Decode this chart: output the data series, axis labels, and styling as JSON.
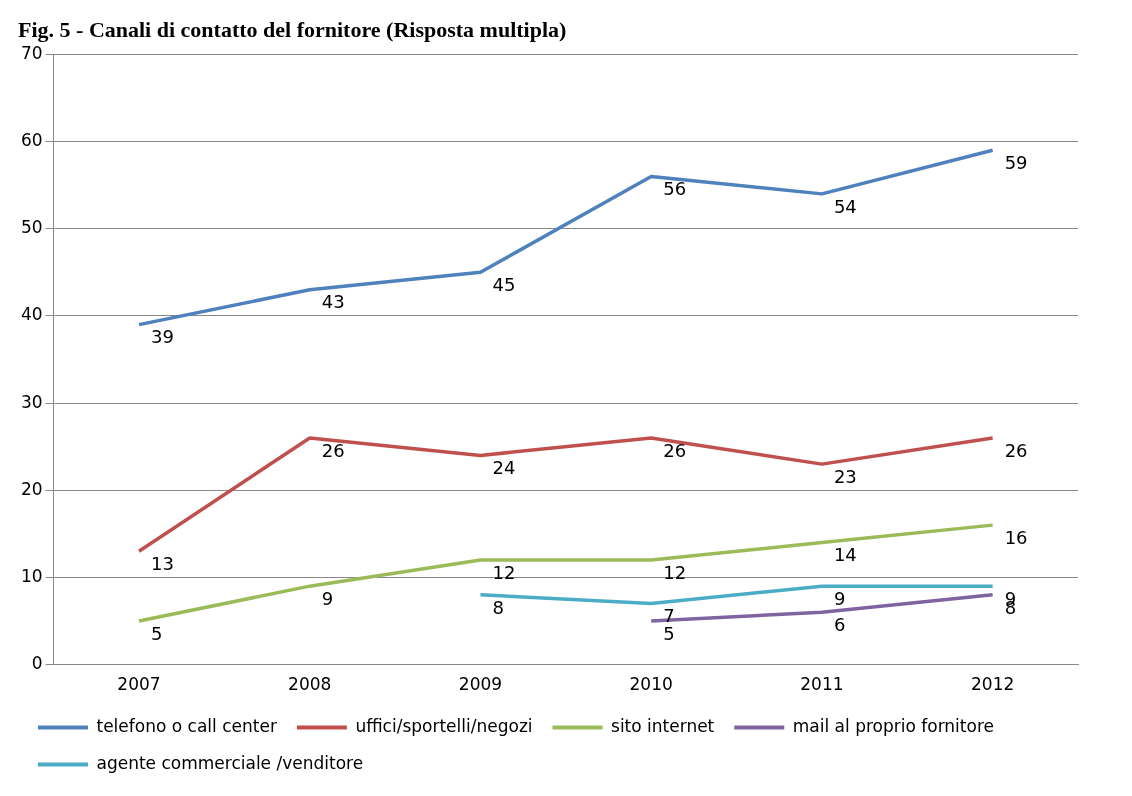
{
  "chart_data": {
    "type": "line",
    "title": "Fig. 5 - Canali di contatto del fornitore (Risposta multipla)",
    "categories": [
      "2007",
      "2008",
      "2009",
      "2010",
      "2011",
      "2012"
    ],
    "series": [
      {
        "name": "telefono o call center",
        "color": "#4f81bd",
        "values": [
          39,
          43,
          45,
          56,
          54,
          59
        ]
      },
      {
        "name": "uffici/sportelli/negozi",
        "color": "#c0504d",
        "values": [
          13,
          26,
          24,
          26,
          23,
          26
        ]
      },
      {
        "name": "sito internet",
        "color": "#9bbb59",
        "values": [
          5,
          9,
          12,
          12,
          14,
          16
        ]
      },
      {
        "name": "mail al proprio fornitore",
        "color": "#8064a2",
        "values": [
          null,
          null,
          null,
          5,
          6,
          8
        ]
      },
      {
        "name": "agente commerciale /venditore",
        "color": "#4bacc6",
        "values": [
          null,
          null,
          8,
          7,
          9,
          9
        ]
      }
    ],
    "ylim": [
      0,
      70
    ],
    "yticks": [
      0,
      10,
      20,
      30,
      40,
      50,
      60,
      70
    ],
    "grid": "y",
    "legend": "bottom",
    "marker": "none",
    "line_style": "solid",
    "data_labels": true
  }
}
